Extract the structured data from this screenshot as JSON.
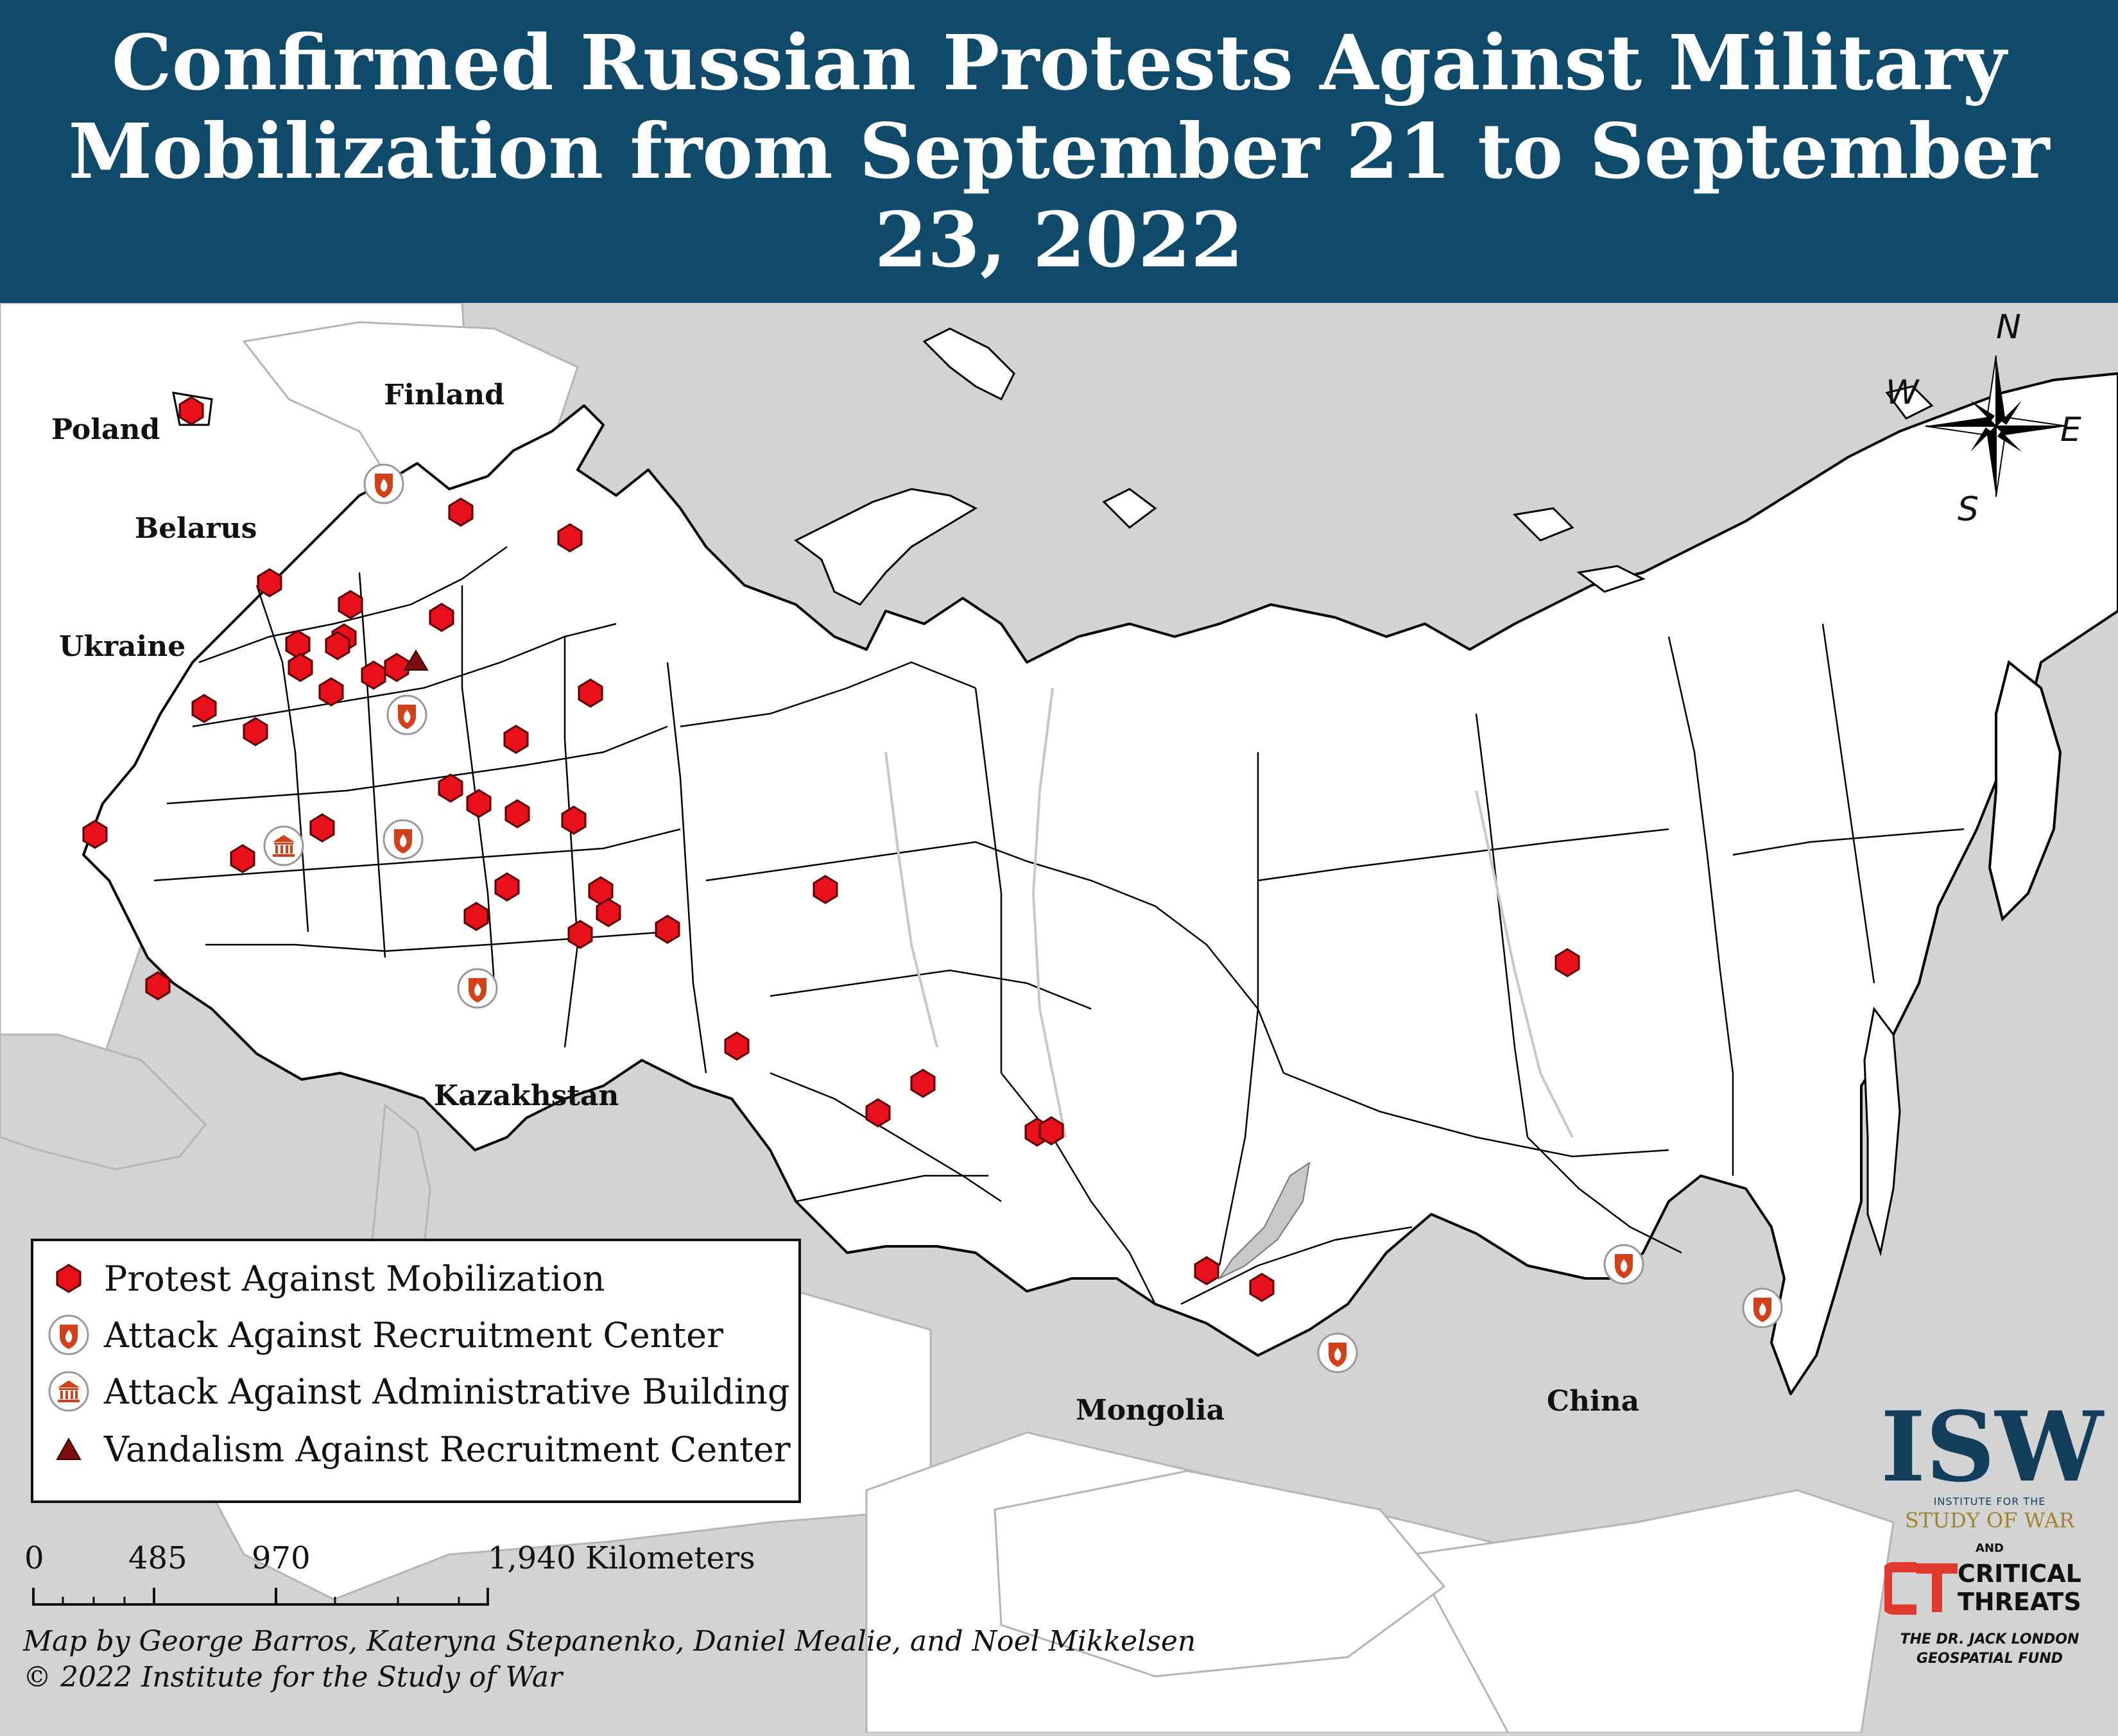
{
  "title": "Confirmed Russian Protests Against Military Mobilization from September 21 to September 23, 2022",
  "countries": {
    "poland": "Poland",
    "finland": "Finland",
    "belarus": "Belarus",
    "ukraine": "Ukraine",
    "kazakhstan": "Kazakhstan",
    "mongolia": "Mongolia",
    "china": "China"
  },
  "compass": {
    "n": "N",
    "e": "E",
    "s": "S",
    "w": "W"
  },
  "legend": [
    {
      "symbol": "protest-hexagon",
      "label": "Protest Against Mobilization"
    },
    {
      "symbol": "recruitment-attack-icon",
      "label": "Attack Against Recruitment Center"
    },
    {
      "symbol": "admin-building-attack-icon",
      "label": "Attack Against Administrative Building"
    },
    {
      "symbol": "vandalism-triangle",
      "label": "Vandalism Against Recruitment Center"
    }
  ],
  "scale": {
    "ticks": [
      "0",
      "485",
      "970",
      "1,940"
    ],
    "unit": "Kilometers"
  },
  "credits": {
    "line1": "Map by George Barros, Kateryna Stepanenko, Daniel Mealie, and Noel Mikkelsen",
    "line2": "© 2022 Institute for the Study of War"
  },
  "logos": {
    "isw": "ISW",
    "isw_line1": "INSTITUTE FOR THE",
    "isw_line2": "STUDY OF WAR",
    "and": "AND",
    "ct_line1": "CRITICAL",
    "ct_line2": "THREATS",
    "fund_line1": "THE DR. JACK LONDON",
    "fund_line2": "GEOSPATIAL FUND"
  },
  "colors": {
    "header": "#0f4a6b",
    "russia": "#ffffff",
    "background": "#d3d3d3",
    "protest": "#e8101a",
    "attack_icon": "#d2421a",
    "vandalism": "#7a0e0e"
  }
}
